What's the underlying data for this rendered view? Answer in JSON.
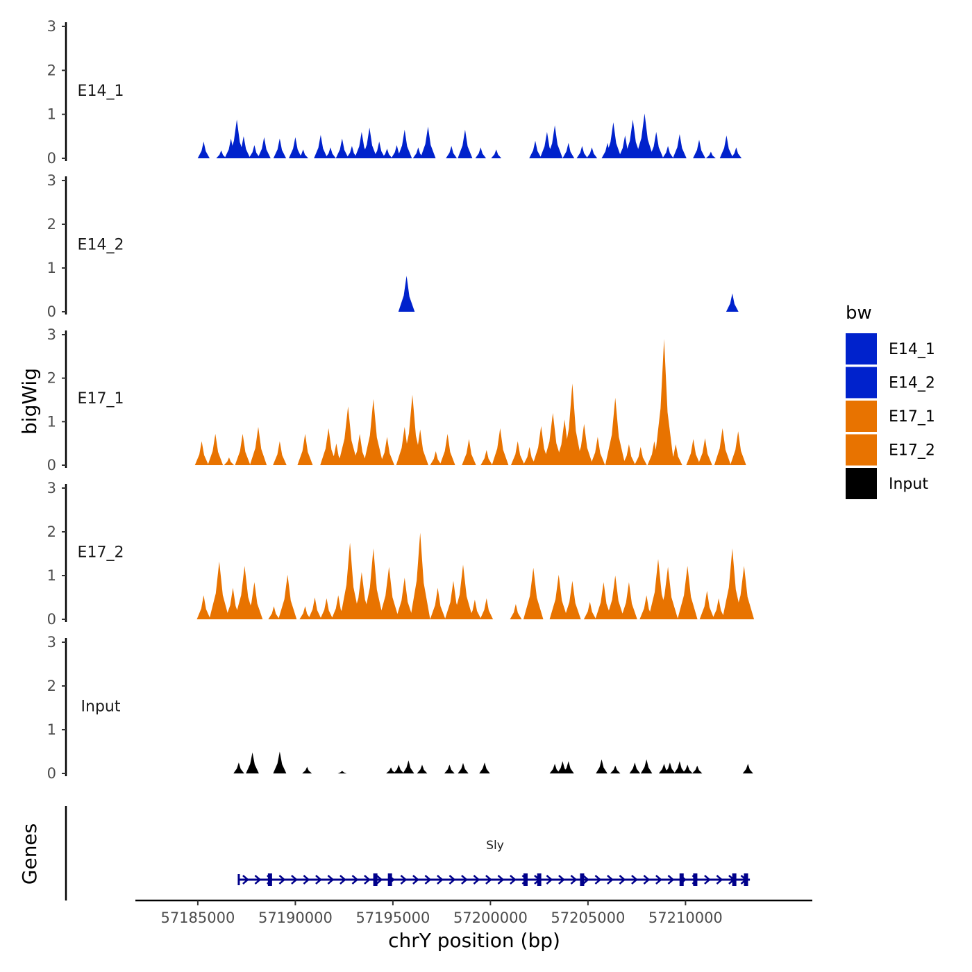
{
  "chart_data": {
    "type": "area",
    "y_axis_title": "bigWig",
    "x_axis_title": "chrY position (bp)",
    "xlim": [
      57181800,
      57216500
    ],
    "ylim": [
      0,
      3
    ],
    "y_ticks": [
      "0",
      "1",
      "2",
      "3"
    ],
    "x_ticks": [
      {
        "value": 57185000,
        "label": "57185000"
      },
      {
        "value": 57190000,
        "label": "57190000"
      },
      {
        "value": 57195000,
        "label": "57195000"
      },
      {
        "value": 57200000,
        "label": "57200000"
      },
      {
        "value": 57205000,
        "label": "57205000"
      },
      {
        "value": 57210000,
        "label": "57210000"
      }
    ],
    "legend": {
      "title": "bw",
      "entries": [
        {
          "label": "E14_1",
          "color": "#0022CC"
        },
        {
          "label": "E14_2",
          "color": "#0022CC"
        },
        {
          "label": "E17_1",
          "color": "#E87300"
        },
        {
          "label": "E17_2",
          "color": "#E87300"
        },
        {
          "label": "Input",
          "color": "#000000"
        }
      ]
    },
    "tracks": [
      {
        "name": "E14_1",
        "color": "#0022CC",
        "peaks": [
          [
            57185300,
            0.38
          ],
          [
            57186200,
            0.18
          ],
          [
            57186700,
            0.45
          ],
          [
            57187000,
            0.88
          ],
          [
            57187350,
            0.5
          ],
          [
            57187900,
            0.3
          ],
          [
            57188400,
            0.48
          ],
          [
            57189200,
            0.45
          ],
          [
            57190000,
            0.48
          ],
          [
            57190400,
            0.2
          ],
          [
            57191300,
            0.53
          ],
          [
            57191800,
            0.25
          ],
          [
            57192400,
            0.45
          ],
          [
            57192900,
            0.28
          ],
          [
            57193400,
            0.6
          ],
          [
            57193800,
            0.7
          ],
          [
            57194300,
            0.38
          ],
          [
            57194700,
            0.22
          ],
          [
            57195200,
            0.3
          ],
          [
            57195600,
            0.65
          ],
          [
            57196300,
            0.25
          ],
          [
            57196800,
            0.72
          ],
          [
            57198000,
            0.28
          ],
          [
            57198700,
            0.65
          ],
          [
            57199500,
            0.25
          ],
          [
            57200300,
            0.2
          ],
          [
            57202300,
            0.4
          ],
          [
            57202900,
            0.6
          ],
          [
            57203300,
            0.75
          ],
          [
            57204000,
            0.35
          ],
          [
            57204700,
            0.28
          ],
          [
            57205200,
            0.25
          ],
          [
            57206000,
            0.35
          ],
          [
            57206300,
            0.82
          ],
          [
            57206900,
            0.52
          ],
          [
            57207300,
            0.88
          ],
          [
            57207700,
            0.35
          ],
          [
            57207900,
            1.02
          ],
          [
            57208500,
            0.6
          ],
          [
            57209100,
            0.28
          ],
          [
            57209700,
            0.55
          ],
          [
            57210700,
            0.42
          ],
          [
            57211300,
            0.15
          ],
          [
            57212100,
            0.52
          ],
          [
            57212600,
            0.25
          ]
        ]
      },
      {
        "name": "E14_2",
        "color": "#0022CC",
        "peaks": [
          [
            57195700,
            0.82
          ],
          [
            57212400,
            0.42
          ]
        ]
      },
      {
        "name": "E17_1",
        "color": "#E87300",
        "peaks": [
          [
            57185200,
            0.55
          ],
          [
            57185900,
            0.72
          ],
          [
            57186600,
            0.18
          ],
          [
            57187300,
            0.72
          ],
          [
            57188100,
            0.88
          ],
          [
            57189200,
            0.55
          ],
          [
            57190500,
            0.72
          ],
          [
            57191700,
            0.85
          ],
          [
            57192100,
            0.5
          ],
          [
            57192700,
            1.35
          ],
          [
            57193300,
            0.72
          ],
          [
            57194000,
            1.52
          ],
          [
            57194700,
            0.65
          ],
          [
            57195600,
            0.88
          ],
          [
            57196000,
            1.62
          ],
          [
            57196400,
            0.82
          ],
          [
            57197200,
            0.32
          ],
          [
            57197800,
            0.72
          ],
          [
            57198900,
            0.6
          ],
          [
            57199800,
            0.35
          ],
          [
            57200500,
            0.85
          ],
          [
            57201400,
            0.55
          ],
          [
            57202000,
            0.42
          ],
          [
            57202600,
            0.9
          ],
          [
            57203200,
            1.2
          ],
          [
            57203800,
            1.05
          ],
          [
            57204200,
            1.88
          ],
          [
            57204800,
            0.95
          ],
          [
            57205500,
            0.65
          ],
          [
            57206400,
            1.55
          ],
          [
            57207100,
            0.48
          ],
          [
            57207700,
            0.42
          ],
          [
            57208400,
            0.55
          ],
          [
            57208900,
            2.9
          ],
          [
            57209500,
            0.48
          ],
          [
            57210400,
            0.6
          ],
          [
            57211000,
            0.62
          ],
          [
            57211900,
            0.85
          ],
          [
            57212700,
            0.78
          ]
        ]
      },
      {
        "name": "E17_2",
        "color": "#E87300",
        "peaks": [
          [
            57185300,
            0.55
          ],
          [
            57186100,
            1.32
          ],
          [
            57186800,
            0.72
          ],
          [
            57187400,
            1.22
          ],
          [
            57187900,
            0.85
          ],
          [
            57188900,
            0.3
          ],
          [
            57189600,
            1.02
          ],
          [
            57190500,
            0.3
          ],
          [
            57191000,
            0.5
          ],
          [
            57191600,
            0.48
          ],
          [
            57192200,
            0.55
          ],
          [
            57192800,
            1.75
          ],
          [
            57193400,
            1.08
          ],
          [
            57194000,
            1.62
          ],
          [
            57194800,
            1.2
          ],
          [
            57195600,
            0.95
          ],
          [
            57196400,
            1.98
          ],
          [
            57197300,
            0.72
          ],
          [
            57198100,
            0.88
          ],
          [
            57198600,
            1.25
          ],
          [
            57199200,
            0.45
          ],
          [
            57199800,
            0.48
          ],
          [
            57201300,
            0.35
          ],
          [
            57202200,
            1.18
          ],
          [
            57203500,
            1.02
          ],
          [
            57204200,
            0.88
          ],
          [
            57205100,
            0.4
          ],
          [
            57205800,
            0.85
          ],
          [
            57206400,
            1.0
          ],
          [
            57207100,
            0.85
          ],
          [
            57208000,
            0.55
          ],
          [
            57208600,
            1.38
          ],
          [
            57209100,
            1.2
          ],
          [
            57210100,
            1.22
          ],
          [
            57211100,
            0.65
          ],
          [
            57211700,
            0.48
          ],
          [
            57212400,
            1.62
          ],
          [
            57213000,
            1.22
          ]
        ]
      },
      {
        "name": "Input",
        "color": "#000000",
        "peaks": [
          [
            57187100,
            0.25
          ],
          [
            57187800,
            0.48
          ],
          [
            57189200,
            0.5
          ],
          [
            57190600,
            0.15
          ],
          [
            57192400,
            0.06
          ],
          [
            57194900,
            0.14
          ],
          [
            57195300,
            0.2
          ],
          [
            57195800,
            0.3
          ],
          [
            57196500,
            0.2
          ],
          [
            57197900,
            0.2
          ],
          [
            57198600,
            0.24
          ],
          [
            57199700,
            0.25
          ],
          [
            57203300,
            0.22
          ],
          [
            57203700,
            0.28
          ],
          [
            57204000,
            0.28
          ],
          [
            57205700,
            0.32
          ],
          [
            57206400,
            0.18
          ],
          [
            57207400,
            0.25
          ],
          [
            57208000,
            0.32
          ],
          [
            57208900,
            0.22
          ],
          [
            57209200,
            0.25
          ],
          [
            57209700,
            0.28
          ],
          [
            57210100,
            0.2
          ],
          [
            57210600,
            0.18
          ],
          [
            57213200,
            0.22
          ]
        ]
      }
    ],
    "genes_track": {
      "title": "Genes",
      "gene_name": "Sly",
      "color": "#00008B",
      "start": 57187100,
      "end": 57213300,
      "exons": [
        57188700,
        57194100,
        57194850,
        57201800,
        57202500,
        57204700,
        57209800,
        57210500,
        57212500,
        57213100
      ]
    }
  }
}
